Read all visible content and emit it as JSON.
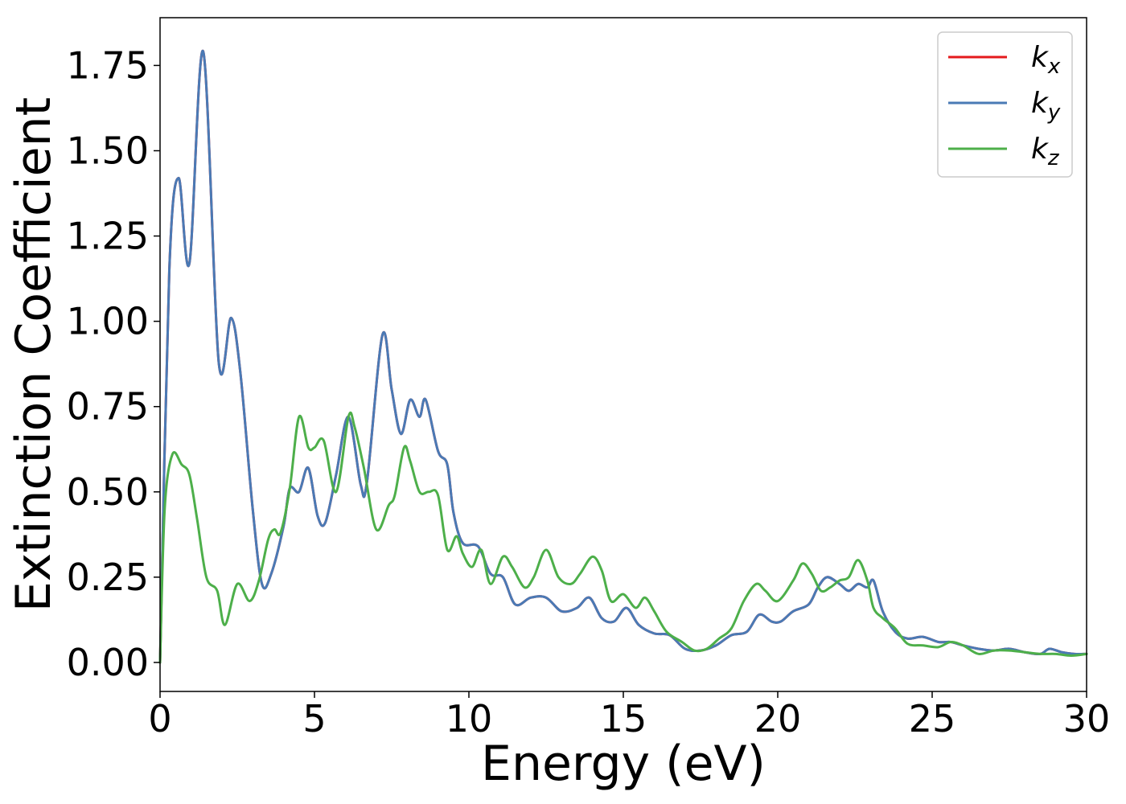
{
  "chart_data": {
    "type": "line",
    "xlabel": "Energy (eV)",
    "ylabel": "Extinction Coefficient",
    "xlim": [
      0,
      30
    ],
    "ylim": [
      -0.085,
      1.89
    ],
    "xticks": [
      0,
      5,
      10,
      15,
      20,
      25,
      30
    ],
    "xtick_labels": [
      "0",
      "5",
      "10",
      "15",
      "20",
      "25",
      "30"
    ],
    "yticks": [
      0.0,
      0.25,
      0.5,
      0.75,
      1.0,
      1.25,
      1.5,
      1.75
    ],
    "ytick_labels": [
      "0.00",
      "0.25",
      "0.50",
      "0.75",
      "1.00",
      "1.25",
      "1.50",
      "1.75"
    ],
    "grid": false,
    "legend_position": "top-right",
    "series": [
      {
        "name": "k_x",
        "label_base": "k",
        "label_sub": "x",
        "color": "#e41a1c",
        "x": [
          0,
          0.3,
          0.6,
          0.95,
          1.4,
          1.9,
          2.3,
          2.6,
          3.0,
          3.3,
          3.6,
          4.0,
          4.2,
          4.5,
          4.8,
          5.1,
          5.35,
          5.7,
          6.1,
          6.5,
          6.7,
          7.2,
          7.5,
          7.8,
          8.1,
          8.4,
          8.6,
          9.0,
          9.3,
          9.5,
          9.8,
          10.3,
          10.7,
          11.1,
          11.5,
          12.0,
          12.5,
          13.0,
          13.5,
          13.9,
          14.3,
          14.7,
          15.1,
          15.5,
          16.0,
          16.5,
          17.0,
          17.5,
          18.0,
          18.5,
          19.0,
          19.4,
          19.8,
          20.1,
          20.5,
          21.0,
          21.3,
          21.6,
          22.0,
          22.3,
          22.6,
          22.9,
          23.1,
          23.4,
          23.8,
          24.2,
          24.7,
          25.2,
          25.6,
          26.0,
          26.5,
          27.0,
          27.5,
          28.0,
          28.5,
          28.8,
          29.2,
          29.6,
          30.0
        ],
        "y": [
          0.0,
          1.15,
          1.42,
          1.17,
          1.79,
          0.88,
          1.01,
          0.85,
          0.45,
          0.23,
          0.26,
          0.4,
          0.51,
          0.5,
          0.57,
          0.43,
          0.41,
          0.55,
          0.72,
          0.52,
          0.53,
          0.96,
          0.8,
          0.67,
          0.77,
          0.72,
          0.77,
          0.62,
          0.58,
          0.44,
          0.35,
          0.34,
          0.26,
          0.25,
          0.17,
          0.19,
          0.19,
          0.15,
          0.16,
          0.19,
          0.13,
          0.12,
          0.16,
          0.11,
          0.085,
          0.08,
          0.04,
          0.035,
          0.05,
          0.08,
          0.09,
          0.14,
          0.12,
          0.12,
          0.15,
          0.17,
          0.22,
          0.25,
          0.23,
          0.21,
          0.23,
          0.22,
          0.24,
          0.15,
          0.09,
          0.07,
          0.075,
          0.06,
          0.06,
          0.05,
          0.04,
          0.035,
          0.04,
          0.03,
          0.025,
          0.04,
          0.03,
          0.025,
          0.025
        ]
      },
      {
        "name": "k_y",
        "label_base": "k",
        "label_sub": "y",
        "color": "#4a7ab5",
        "x": [
          0,
          0.3,
          0.6,
          0.95,
          1.4,
          1.9,
          2.3,
          2.6,
          3.0,
          3.3,
          3.6,
          4.0,
          4.2,
          4.5,
          4.8,
          5.1,
          5.35,
          5.7,
          6.1,
          6.5,
          6.7,
          7.2,
          7.5,
          7.8,
          8.1,
          8.4,
          8.6,
          9.0,
          9.3,
          9.5,
          9.8,
          10.3,
          10.7,
          11.1,
          11.5,
          12.0,
          12.5,
          13.0,
          13.5,
          13.9,
          14.3,
          14.7,
          15.1,
          15.5,
          16.0,
          16.5,
          17.0,
          17.5,
          18.0,
          18.5,
          19.0,
          19.4,
          19.8,
          20.1,
          20.5,
          21.0,
          21.3,
          21.6,
          22.0,
          22.3,
          22.6,
          22.9,
          23.1,
          23.4,
          23.8,
          24.2,
          24.7,
          25.2,
          25.6,
          26.0,
          26.5,
          27.0,
          27.5,
          28.0,
          28.5,
          28.8,
          29.2,
          29.6,
          30.0
        ],
        "y": [
          0.0,
          1.15,
          1.42,
          1.17,
          1.79,
          0.88,
          1.01,
          0.85,
          0.45,
          0.23,
          0.26,
          0.4,
          0.51,
          0.5,
          0.57,
          0.43,
          0.41,
          0.55,
          0.72,
          0.52,
          0.53,
          0.96,
          0.8,
          0.67,
          0.77,
          0.72,
          0.77,
          0.62,
          0.58,
          0.44,
          0.35,
          0.34,
          0.26,
          0.25,
          0.17,
          0.19,
          0.19,
          0.15,
          0.16,
          0.19,
          0.13,
          0.12,
          0.16,
          0.11,
          0.085,
          0.08,
          0.04,
          0.035,
          0.05,
          0.08,
          0.09,
          0.14,
          0.12,
          0.12,
          0.15,
          0.17,
          0.22,
          0.25,
          0.23,
          0.21,
          0.23,
          0.22,
          0.24,
          0.15,
          0.09,
          0.07,
          0.075,
          0.06,
          0.06,
          0.05,
          0.04,
          0.035,
          0.04,
          0.03,
          0.025,
          0.04,
          0.03,
          0.025,
          0.025
        ]
      },
      {
        "name": "k_z",
        "label_base": "k",
        "label_sub": "z",
        "color": "#4daf4a",
        "x": [
          0,
          0.15,
          0.4,
          0.7,
          0.95,
          1.2,
          1.5,
          1.85,
          2.1,
          2.5,
          2.9,
          3.2,
          3.5,
          3.7,
          3.9,
          4.2,
          4.5,
          4.8,
          5.0,
          5.3,
          5.7,
          6.1,
          6.3,
          6.6,
          7.0,
          7.4,
          7.6,
          7.9,
          8.1,
          8.4,
          8.7,
          9.0,
          9.3,
          9.6,
          9.8,
          10.1,
          10.4,
          10.7,
          11.1,
          11.4,
          11.8,
          12.1,
          12.5,
          12.9,
          13.3,
          13.6,
          14.0,
          14.3,
          14.6,
          15.0,
          15.4,
          15.7,
          16.0,
          16.4,
          16.9,
          17.3,
          17.7,
          18.1,
          18.5,
          18.9,
          19.3,
          19.6,
          20.0,
          20.5,
          20.8,
          21.1,
          21.4,
          21.7,
          22.0,
          22.3,
          22.6,
          22.9,
          23.1,
          23.4,
          23.8,
          24.2,
          24.7,
          25.2,
          25.6,
          26.0,
          26.5,
          27.0,
          27.5,
          28.0,
          28.5,
          29.0,
          29.5,
          30.0
        ],
        "y": [
          0.0,
          0.45,
          0.61,
          0.58,
          0.55,
          0.42,
          0.25,
          0.21,
          0.11,
          0.23,
          0.18,
          0.24,
          0.36,
          0.39,
          0.38,
          0.51,
          0.72,
          0.63,
          0.63,
          0.65,
          0.5,
          0.72,
          0.69,
          0.57,
          0.39,
          0.46,
          0.49,
          0.63,
          0.59,
          0.5,
          0.5,
          0.49,
          0.33,
          0.37,
          0.32,
          0.28,
          0.33,
          0.23,
          0.31,
          0.28,
          0.22,
          0.25,
          0.33,
          0.25,
          0.23,
          0.26,
          0.31,
          0.27,
          0.18,
          0.2,
          0.16,
          0.19,
          0.15,
          0.09,
          0.06,
          0.035,
          0.04,
          0.07,
          0.1,
          0.18,
          0.23,
          0.21,
          0.18,
          0.24,
          0.29,
          0.26,
          0.21,
          0.22,
          0.24,
          0.25,
          0.3,
          0.24,
          0.16,
          0.13,
          0.1,
          0.055,
          0.05,
          0.045,
          0.06,
          0.05,
          0.025,
          0.035,
          0.035,
          0.03,
          0.025,
          0.025,
          0.02,
          0.025
        ]
      }
    ]
  }
}
